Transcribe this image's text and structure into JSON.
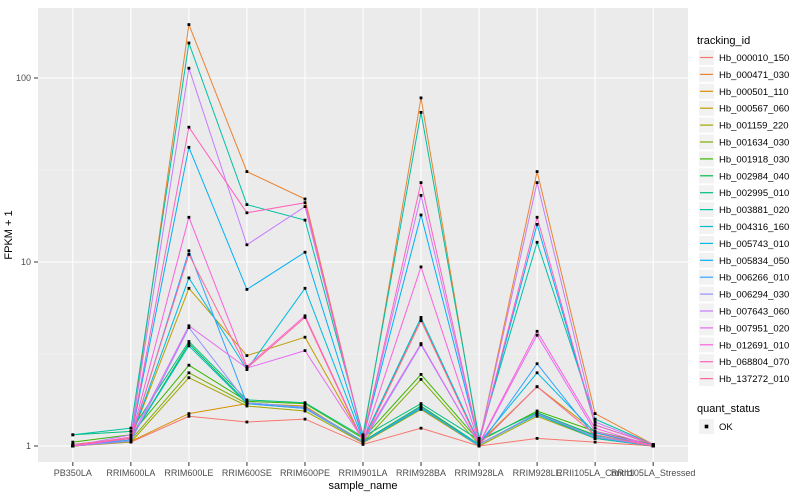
{
  "chart_data": {
    "type": "line",
    "xlabel": "sample_name",
    "ylabel": "FPKM + 1",
    "y_scale": "log10",
    "y_ticks": [
      1,
      10,
      100
    ],
    "y_minor_breaks": [
      3.162,
      31.62
    ],
    "ylim_log": [
      -0.09,
      2.4
    ],
    "grid": "on",
    "legend_position": "right",
    "x_categories": [
      "PB350LA",
      "RRIM600LA",
      "RRIM600LE",
      "RRIM600SE",
      "RRIM600PE",
      "RRIM901LA",
      "RRIM928BA",
      "RRIM928LA",
      "RRIM928LE",
      "RRII105LA_Control",
      "RRII105LA_Stressed"
    ],
    "series": [
      {
        "name": "Hb_000010_150",
        "color": "#F8766D",
        "values": [
          1.0,
          1.05,
          1.45,
          1.35,
          1.4,
          1.02,
          1.25,
          1.0,
          1.1,
          1.05,
          1.0
        ]
      },
      {
        "name": "Hb_000471_030",
        "color": "#EA8331",
        "values": [
          1.0,
          1.1,
          195,
          31,
          22,
          1.1,
          78,
          1.05,
          31,
          1.5,
          1.02
        ]
      },
      {
        "name": "Hb_000501_110",
        "color": "#D89000",
        "values": [
          1.0,
          1.06,
          1.5,
          1.7,
          1.65,
          1.04,
          1.62,
          1.02,
          1.5,
          1.1,
          1.0
        ]
      },
      {
        "name": "Hb_000567_060",
        "color": "#C09B00",
        "values": [
          1.0,
          1.1,
          7.2,
          3.1,
          3.9,
          1.08,
          4.85,
          1.04,
          2.1,
          1.2,
          1.0
        ]
      },
      {
        "name": "Hb_001159_220",
        "color": "#A3A500",
        "values": [
          1.0,
          1.05,
          2.35,
          1.65,
          1.55,
          1.04,
          1.58,
          1.0,
          1.45,
          1.1,
          1.0
        ]
      },
      {
        "name": "Hb_001634_030",
        "color": "#7CAE00",
        "values": [
          1.0,
          1.08,
          2.5,
          1.7,
          1.6,
          1.05,
          2.3,
          1.02,
          1.5,
          1.15,
          1.0
        ]
      },
      {
        "name": "Hb_001918_030",
        "color": "#39B600",
        "values": [
          1.05,
          1.15,
          2.75,
          1.75,
          1.7,
          1.1,
          2.45,
          1.06,
          1.55,
          1.2,
          1.02
        ]
      },
      {
        "name": "Hb_002984_040",
        "color": "#00BB4E",
        "values": [
          1.0,
          1.1,
          3.6,
          1.72,
          1.62,
          1.06,
          1.65,
          1.02,
          1.5,
          1.12,
          1.0
        ]
      },
      {
        "name": "Hb_002995_010",
        "color": "#00BF7D",
        "values": [
          1.15,
          1.2,
          3.7,
          1.78,
          1.72,
          1.12,
          1.7,
          1.08,
          1.52,
          1.14,
          1.02
        ]
      },
      {
        "name": "Hb_003881_020",
        "color": "#00C1A3",
        "values": [
          1.15,
          1.25,
          155,
          20.5,
          16.9,
          1.15,
          65,
          1.1,
          12.8,
          1.4,
          1.02
        ]
      },
      {
        "name": "Hb_004316_160",
        "color": "#00BFC4",
        "values": [
          1.02,
          1.1,
          3.5,
          1.7,
          1.6,
          1.05,
          1.6,
          1.02,
          1.48,
          1.1,
          1.0
        ]
      },
      {
        "name": "Hb_005743_010",
        "color": "#00BAE0",
        "values": [
          1.0,
          1.1,
          8.2,
          2.6,
          7.2,
          1.08,
          5.0,
          1.04,
          2.5,
          1.18,
          1.0
        ]
      },
      {
        "name": "Hb_005834_050",
        "color": "#00B0F6",
        "values": [
          1.0,
          1.1,
          42,
          7.1,
          11.3,
          1.1,
          18,
          1.05,
          16,
          1.3,
          1.02
        ]
      },
      {
        "name": "Hb_006266_010",
        "color": "#35A2FF",
        "values": [
          1.0,
          1.08,
          11.5,
          1.7,
          1.6,
          1.05,
          1.62,
          1.0,
          2.8,
          1.12,
          1.0
        ]
      },
      {
        "name": "Hb_006294_030",
        "color": "#9590FF",
        "values": [
          1.0,
          1.06,
          4.4,
          1.72,
          1.62,
          1.05,
          3.55,
          1.02,
          1.5,
          1.12,
          1.0
        ]
      },
      {
        "name": "Hb_007643_060",
        "color": "#C77CFF",
        "values": [
          1.0,
          1.15,
          113,
          12.4,
          20,
          1.1,
          23,
          1.05,
          27,
          1.35,
          1.02
        ]
      },
      {
        "name": "Hb_007951_020",
        "color": "#E76BF3",
        "values": [
          1.0,
          1.1,
          4.5,
          2.65,
          3.3,
          1.08,
          3.6,
          1.02,
          4.0,
          1.2,
          1.0
        ]
      },
      {
        "name": "Hb_012691_010",
        "color": "#FA62DB",
        "values": [
          1.0,
          1.1,
          17.5,
          2.7,
          5.1,
          1.06,
          9.4,
          1.03,
          4.2,
          1.25,
          1.0
        ]
      },
      {
        "name": "Hb_068804_070",
        "color": "#FF62BC",
        "values": [
          1.0,
          1.12,
          54,
          18.5,
          21,
          1.1,
          27,
          1.05,
          17.5,
          1.3,
          1.02
        ]
      },
      {
        "name": "Hb_137272_010",
        "color": "#FF6A98",
        "values": [
          1.02,
          1.1,
          11,
          2.65,
          5.0,
          1.05,
          4.8,
          1.02,
          2.1,
          1.15,
          1.0
        ]
      }
    ],
    "color_legend_title": "tracking_id",
    "shape_legend_title": "quant_status",
    "shape_legend_items": [
      {
        "label": "OK",
        "shape": "filled-square",
        "color": "#000000"
      }
    ],
    "point_shape": "filled-square",
    "point_color": "#000000"
  },
  "theme": {
    "background": "#FFFFFF",
    "panel_bg": "#EBEBEB",
    "grid_major": "#FFFFFF",
    "grid_minor_opacity": 0.55,
    "tick_color": "#333333",
    "tick_label_color": "#4D4D4D",
    "axis_title_color": "#000000",
    "legend_key_bg": "#F2F2F2"
  }
}
